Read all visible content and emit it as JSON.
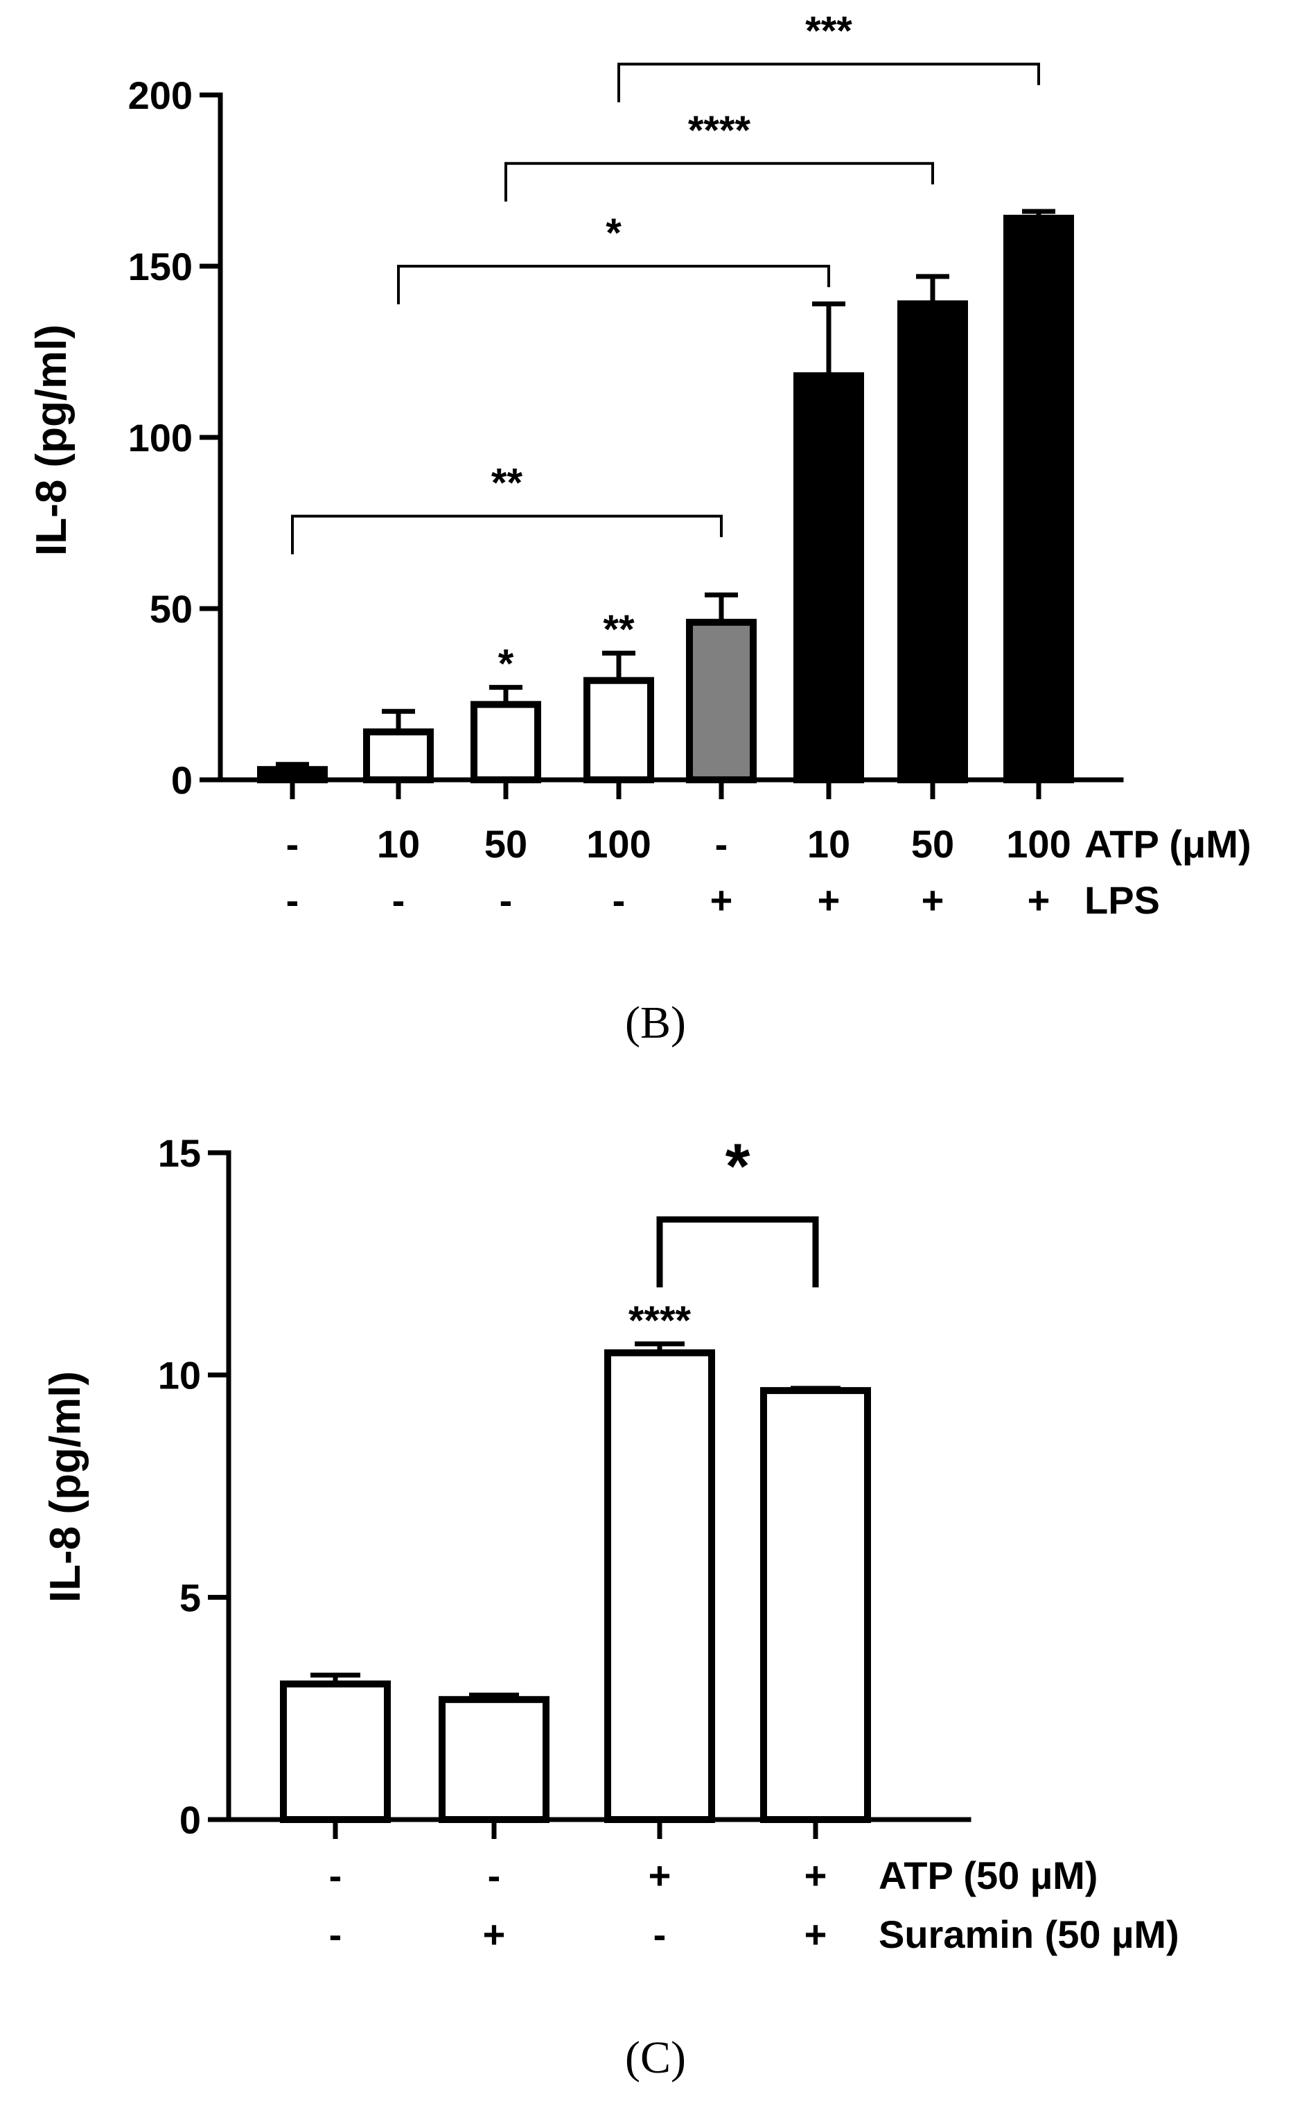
{
  "chart_data": [
    {
      "type": "bar",
      "panel": "(B)",
      "ylabel": "IL-8 (pg/ml)",
      "ylim": [
        0,
        200
      ],
      "yticks": [
        0,
        50,
        100,
        150,
        200
      ],
      "row_labels": [
        "ATP (μM)",
        "LPS"
      ],
      "categories": [
        {
          "atp": "-",
          "lps": "-",
          "value": 3,
          "error": 1.5,
          "color": "#000000",
          "label": ""
        },
        {
          "atp": "10",
          "lps": "-",
          "value": 14,
          "error": 6,
          "color": "#ffffff",
          "label": ""
        },
        {
          "atp": "50",
          "lps": "-",
          "value": 22,
          "error": 5,
          "color": "#ffffff",
          "label": "*"
        },
        {
          "atp": "100",
          "lps": "-",
          "value": 29,
          "error": 8,
          "color": "#ffffff",
          "label": "**"
        },
        {
          "atp": "-",
          "lps": "+",
          "value": 46,
          "error": 8,
          "color": "#808080",
          "label": ""
        },
        {
          "atp": "10",
          "lps": "+",
          "value": 118,
          "error": 21,
          "color": "#000000",
          "label": ""
        },
        {
          "atp": "50",
          "lps": "+",
          "value": 139,
          "error": 8,
          "color": "#000000",
          "label": ""
        },
        {
          "atp": "100",
          "lps": "+",
          "value": 164,
          "error": 2,
          "color": "#000000",
          "label": ""
        }
      ],
      "comparisons": [
        {
          "from": 0,
          "to": 4,
          "stars": "**",
          "level": 77
        },
        {
          "from": 1,
          "to": 5,
          "stars": "*",
          "level": 150
        },
        {
          "from": 2,
          "to": 6,
          "stars": "****",
          "level": 180
        },
        {
          "from": 3,
          "to": 7,
          "stars": "***",
          "level": 209
        }
      ]
    },
    {
      "type": "bar",
      "panel": "(C)",
      "ylabel": "IL-8 (pg/ml)",
      "ylim": [
        0,
        15
      ],
      "yticks": [
        0,
        5,
        10,
        15
      ],
      "row_labels": [
        "ATP (50 µM)",
        "Suramin (50 µM)"
      ],
      "categories": [
        {
          "atp": "-",
          "suramin": "-",
          "value": 3.05,
          "error": 0.2,
          "color": "#ffffff",
          "label": ""
        },
        {
          "atp": "-",
          "suramin": "+",
          "value": 2.7,
          "error": 0.1,
          "color": "#ffffff",
          "label": ""
        },
        {
          "atp": "+",
          "suramin": "-",
          "value": 10.5,
          "error": 0.2,
          "color": "#ffffff",
          "label": "****"
        },
        {
          "atp": "+",
          "suramin": "+",
          "value": 9.65,
          "error": 0.05,
          "color": "#ffffff",
          "label": ""
        }
      ],
      "comparisons": [
        {
          "from": 2,
          "to": 3,
          "stars": "*",
          "level": 13.5
        }
      ]
    }
  ]
}
